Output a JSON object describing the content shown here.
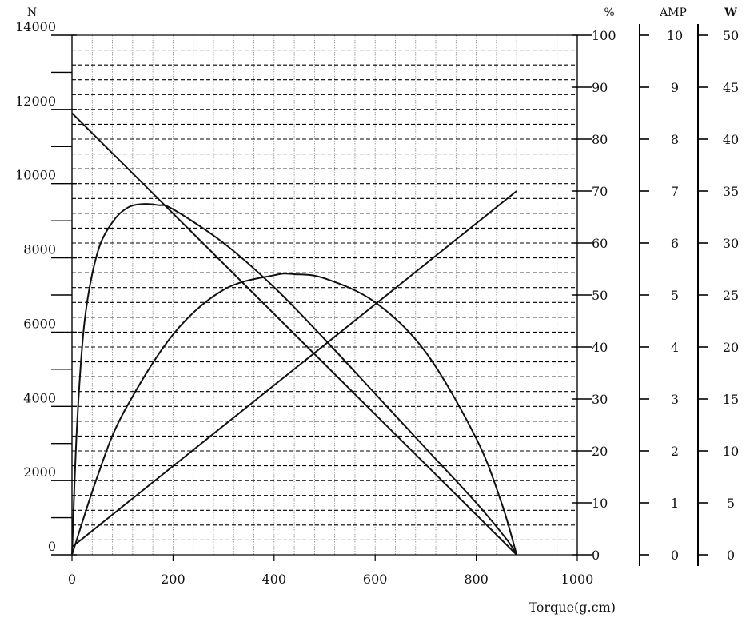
{
  "chart_data": {
    "type": "line",
    "xlabel": "Torque(g.cm)",
    "xlim": [
      0,
      1000
    ],
    "x_ticks": [
      "0",
      "200",
      "400",
      "600",
      "800",
      "1000"
    ],
    "axes": {
      "speed": {
        "unit": "N",
        "range": [
          0,
          14000
        ],
        "ticks": [
          "0",
          "2000",
          "4000",
          "6000",
          "8000",
          "10000",
          "12000",
          "14000"
        ]
      },
      "efficiency": {
        "unit": "%",
        "range": [
          0,
          100
        ],
        "ticks": [
          "0",
          "10",
          "20",
          "30",
          "40",
          "50",
          "60",
          "70",
          "80",
          "90",
          "100"
        ]
      },
      "current": {
        "unit": "AMP",
        "range": [
          0,
          10
        ],
        "ticks": [
          "0",
          "1",
          "2",
          "3",
          "4",
          "5",
          "6",
          "7",
          "8",
          "9",
          "10"
        ]
      },
      "power": {
        "unit": "W",
        "range": [
          0,
          50
        ],
        "ticks": [
          "0",
          "5",
          "10",
          "15",
          "20",
          "25",
          "30",
          "35",
          "40",
          "45",
          "50"
        ]
      }
    },
    "grid": true,
    "series": [
      {
        "axis": "speed",
        "x": [
          0,
          880
        ],
        "y": [
          11900,
          0
        ]
      },
      {
        "axis": "current",
        "x": [
          0,
          880
        ],
        "y": [
          0.15,
          7.0
        ]
      },
      {
        "axis": "efficiency",
        "x": [
          0,
          10,
          25,
          50,
          80,
          110,
          140,
          170,
          200,
          300,
          400,
          500,
          600,
          700,
          800,
          860,
          880
        ],
        "y": [
          0,
          25,
          45,
          58,
          64,
          66.8,
          67.5,
          67.3,
          66.5,
          60,
          51.5,
          41.5,
          31,
          20.5,
          10,
          3,
          0
        ]
      },
      {
        "axis": "power",
        "x": [
          0,
          50,
          100,
          200,
          300,
          400,
          440,
          500,
          600,
          700,
          800,
          850,
          880
        ],
        "y": [
          0,
          7.5,
          13.5,
          21.2,
          25.5,
          26.9,
          27.0,
          26.6,
          24.3,
          19.5,
          11.2,
          5.0,
          0
        ]
      }
    ]
  }
}
